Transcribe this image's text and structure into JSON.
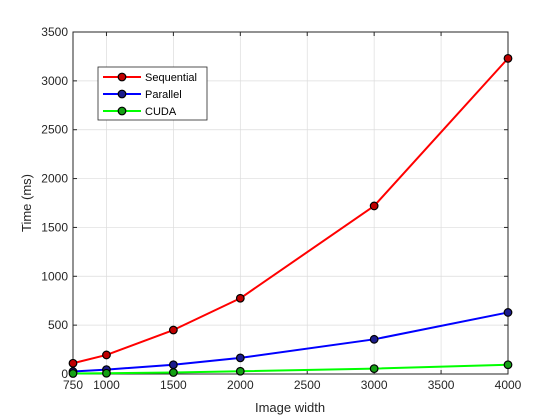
{
  "chart_data": {
    "type": "line",
    "title": "",
    "xlabel": "Image width",
    "ylabel": "Time (ms)",
    "x": [
      750,
      1000,
      1500,
      2000,
      3000,
      4000
    ],
    "xlim": [
      750,
      4000
    ],
    "ylim": [
      0,
      3500
    ],
    "xticks": [
      750,
      1000,
      1500,
      2000,
      2500,
      3000,
      3500,
      4000
    ],
    "yticks": [
      0,
      500,
      1000,
      1500,
      2000,
      2500,
      3000,
      3500
    ],
    "grid": true,
    "legend_position": "top-left",
    "series": [
      {
        "name": "Sequential",
        "color": "#ff0000",
        "marker_fill": "#c00000",
        "values": [
          110,
          195,
          450,
          775,
          1720,
          3230
        ]
      },
      {
        "name": "Parallel",
        "color": "#0000ff",
        "marker_fill": "#1c1c8c",
        "values": [
          25,
          45,
          95,
          165,
          355,
          630
        ]
      },
      {
        "name": "CUDA",
        "color": "#00ff00",
        "marker_fill": "#14a014",
        "values": [
          5,
          8,
          15,
          28,
          55,
          95
        ]
      }
    ]
  }
}
